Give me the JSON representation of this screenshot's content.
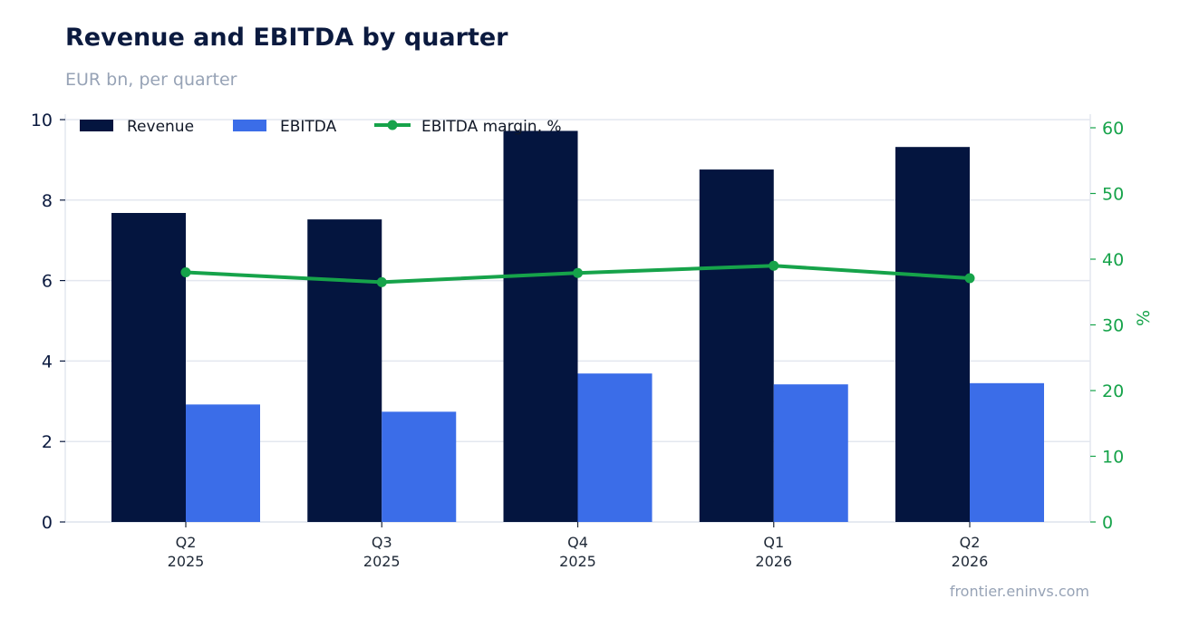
{
  "header": {
    "title": "Revenue and EBITDA by quarter",
    "subtitle": "EUR bn, per quarter"
  },
  "footer": {
    "source": "frontier.eninvs.com"
  },
  "colors": {
    "revenue": "#04153f",
    "ebitda": "#3b6de8",
    "margin": "#16a34a",
    "grid": "#e3e7ef"
  },
  "chart_data": {
    "type": "bar",
    "title": "Revenue and EBITDA by quarter",
    "subtitle": "EUR bn, per quarter",
    "categories": [
      [
        "Q2",
        "2025"
      ],
      [
        "Q3",
        "2025"
      ],
      [
        "Q4",
        "2025"
      ],
      [
        "Q1",
        "2026"
      ],
      [
        "Q2",
        "2026"
      ]
    ],
    "series": [
      {
        "name": "Revenue",
        "type": "bar",
        "axis": "left",
        "values": [
          7.68,
          7.52,
          9.72,
          8.76,
          9.32
        ]
      },
      {
        "name": "EBITDA",
        "type": "bar",
        "axis": "left",
        "values": [
          2.92,
          2.74,
          3.69,
          3.42,
          3.45
        ]
      },
      {
        "name": "EBITDA margin, %",
        "type": "line",
        "axis": "right",
        "values": [
          38.0,
          36.5,
          37.9,
          39.0,
          37.1
        ]
      }
    ],
    "xlabel": "",
    "ylabel": "",
    "ylabel_right": "%",
    "ylim": [
      0,
      10
    ],
    "ylim_right": [
      0,
      61.3
    ],
    "yticks": [
      0,
      2,
      4,
      6,
      8,
      10
    ],
    "yticks_right": [
      0,
      10,
      20,
      30,
      40,
      50,
      60
    ],
    "grid": true,
    "legend": "top-left"
  }
}
